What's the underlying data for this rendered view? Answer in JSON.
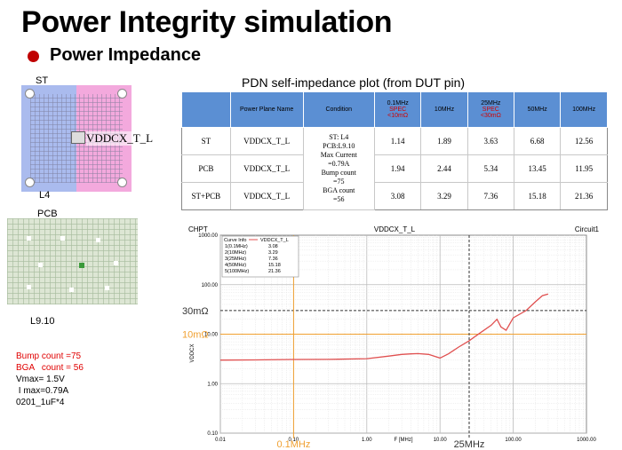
{
  "slide": {
    "title": "Power Integrity simulation",
    "subtitle": "Power Impedance"
  },
  "package_image": {
    "top_label": "ST",
    "bottom_label": "L4",
    "net_label": "VDDCX_T_L"
  },
  "pcb_image": {
    "top_label": "PCB",
    "bottom_label": "L9.10"
  },
  "notes": {
    "line1": "Bump count =75",
    "line2": "BGA   count = 56",
    "line3": "Vmax= 1.5V",
    "line4": " I max=0.79A",
    "line5": "0201_1uF*4",
    "highlight_color": "#e00000"
  },
  "table": {
    "title": "PDN self-impedance plot (from DUT pin)",
    "headers": {
      "plane": "Power Plane Name",
      "condition": "Condition",
      "f1": "0.1MHz",
      "f1_spec": "SPEC\n<10mΩ",
      "f2": "10MHz",
      "f3": "25MHz",
      "f3_spec": "SPEC\n<30mΩ",
      "f4": "50MHz",
      "f5": "100MHz"
    },
    "condition_text": {
      "line1": "ST: L4",
      "line2": "PCB:L9.10",
      "line3": "Max Current",
      "line4": "=0.79A",
      "line5": "Bump count",
      "line6": "=75",
      "line7": "BGA count",
      "line8": "=56"
    },
    "rows": [
      {
        "name": "ST",
        "plane": "VDDCX_T_L",
        "v1": "1.14",
        "v2": "1.89",
        "v3": "3.63",
        "v4": "6.68",
        "v5": "12.56"
      },
      {
        "name": "PCB",
        "plane": "VDDCX_T_L",
        "v1": "1.94",
        "v2": "2.44",
        "v3": "5.34",
        "v4": "13.45",
        "v5": "11.95"
      },
      {
        "name": "ST+PCB",
        "plane": "VDDCX_T_L",
        "v1": "3.08",
        "v2": "3.29",
        "v3": "7.36",
        "v4": "15.18",
        "v5": "21.36"
      }
    ],
    "header_color": "#5b8fd3",
    "spec_color": "#d00000"
  },
  "chart_data": {
    "type": "line",
    "corner_label": "CHPT",
    "title": "VDDCX_T_L",
    "circuit_label": "Circuit1",
    "xlabel": "F [MHz]",
    "ylabel": "VDDCX",
    "x_scale": "log",
    "y_scale": "log",
    "xlim": [
      0.01,
      1000
    ],
    "ylim": [
      0.1,
      1000
    ],
    "x_ticks": [
      "0.01",
      "0.10",
      "1.00",
      "10.00",
      "100.00",
      "1000.00"
    ],
    "y_ticks": [
      "0.10",
      "1.00",
      "10.00",
      "100.00",
      "1000.00"
    ],
    "grid": true,
    "legend": {
      "header": "Curve Info",
      "series_name": "VDDCX_T_L",
      "rows": [
        {
          "label": "1(0.1MHz)",
          "value": "3.08"
        },
        {
          "label": "2(10MHz)",
          "value": "3.29"
        },
        {
          "label": "3(25MHz)",
          "value": "7.36"
        },
        {
          "label": "4(50MHz)",
          "value": "15.18"
        },
        {
          "label": "5(100MHz)",
          "value": "21.36"
        }
      ]
    },
    "series": [
      {
        "name": "VDDCX_T_L",
        "color": "#e05050",
        "x": [
          0.01,
          0.03,
          0.1,
          0.3,
          1.0,
          2.0,
          3.0,
          4.0,
          5.0,
          7.0,
          10.0,
          13.0,
          18.0,
          25.0,
          35.0,
          50.0,
          60.0,
          68.0,
          80.0,
          100.0,
          150.0,
          200.0,
          250.0,
          300.0
        ],
        "y": [
          3.0,
          3.02,
          3.08,
          3.1,
          3.2,
          3.6,
          3.9,
          4.0,
          4.05,
          3.9,
          3.29,
          4.0,
          5.5,
          7.36,
          10.5,
          15.18,
          20.0,
          14.0,
          12.0,
          21.36,
          30.0,
          45.0,
          60.0,
          65.0
        ]
      }
    ],
    "reference_lines": [
      {
        "type": "h",
        "value": 30,
        "label": "30mΩ",
        "color": "#333333",
        "style": "dashed"
      },
      {
        "type": "h",
        "value": 10,
        "label": "10mΩ",
        "color": "#f0a030",
        "style": "solid"
      },
      {
        "type": "v",
        "value": 0.1,
        "label": "0.1MHz",
        "color": "#f0a030",
        "style": "solid"
      },
      {
        "type": "v",
        "value": 25,
        "label": "25MHz",
        "color": "#333333",
        "style": "dashed"
      }
    ],
    "colors": {
      "orange": "#f0a030",
      "dark": "#333333"
    }
  }
}
